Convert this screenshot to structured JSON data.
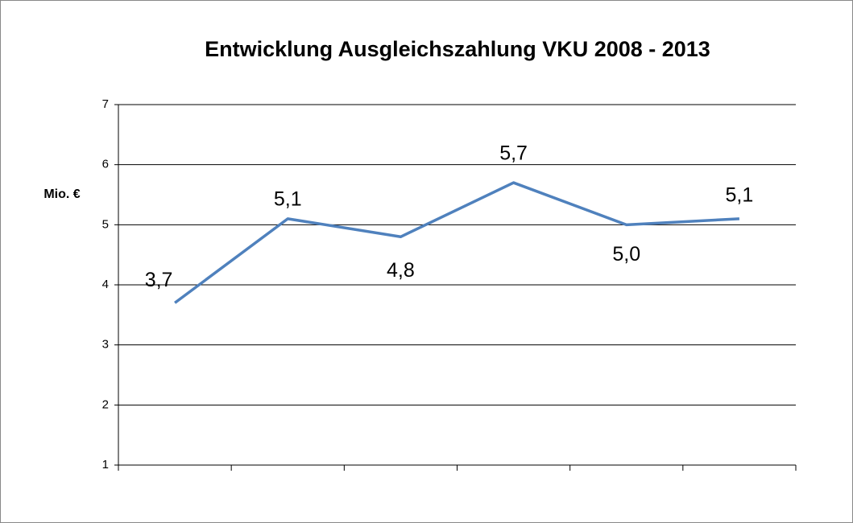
{
  "chart_data": {
    "type": "line",
    "title": "Entwicklung Ausgleichszahlung VKU 2008 - 2013",
    "y_label": "Mio. €",
    "categories": [
      null,
      null,
      null,
      null,
      null,
      null
    ],
    "series": [
      {
        "name": null,
        "color": "#4f81bd",
        "values": [
          3.7,
          5.1,
          4.8,
          5.7,
          5.0,
          5.1
        ],
        "value_labels": [
          "3,7",
          "5,1",
          "4,8",
          "5,7",
          "5,0",
          "5,1"
        ]
      }
    ],
    "ylim": [
      1,
      7
    ],
    "yticks": [
      1,
      2,
      3,
      4,
      5,
      6,
      7
    ],
    "grid": true
  }
}
